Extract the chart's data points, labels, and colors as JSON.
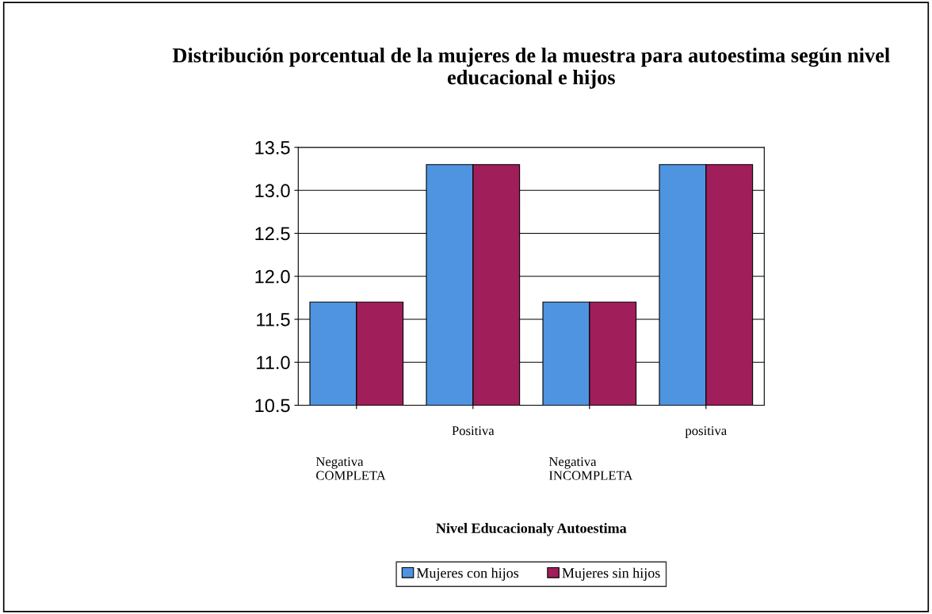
{
  "chart_data": {
    "type": "bar",
    "title": "Distribución porcentual de la mujeres de la muestra para autoestima según nivel educacional e hijos",
    "xlabel": "Nivel Educacionaly Autoestima",
    "categories": [
      "Negativa\nCOMPLETA",
      "Positiva",
      "Negativa\nINCOMPLETA",
      "positiva"
    ],
    "series": [
      {
        "name": "Mujeres con hijos",
        "color": "#4f94e0",
        "values": [
          11.7,
          13.3,
          11.7,
          13.3
        ]
      },
      {
        "name": "Mujeres sin hijos",
        "color": "#a01e5a",
        "values": [
          11.7,
          13.3,
          11.7,
          13.3
        ]
      }
    ],
    "ylim": [
      10.5,
      13.5
    ],
    "yticks": [
      {
        "value": 10.5,
        "label": "10.5"
      },
      {
        "value": 11,
        "label": "11.0"
      },
      {
        "value": 11.5,
        "label": "11.5"
      },
      {
        "value": 12,
        "label": "12.0"
      },
      {
        "value": 12.5,
        "label": "12.5"
      },
      {
        "value": 13,
        "label": "13.0"
      },
      {
        "value": 13.5,
        "label": "13.5"
      }
    ],
    "grid": "y",
    "legend": "bottom"
  }
}
